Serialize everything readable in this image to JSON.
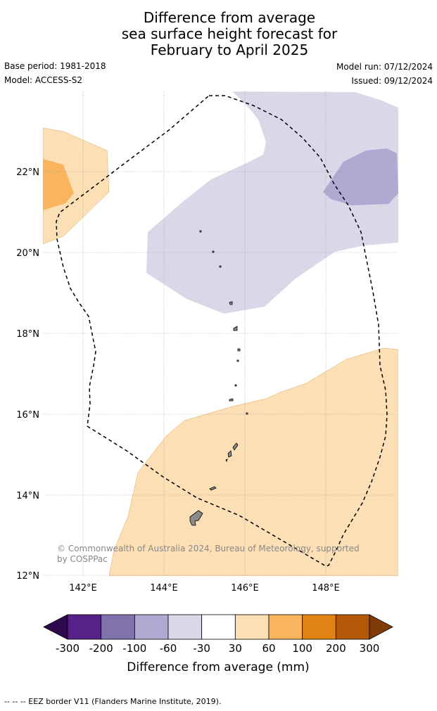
{
  "title": {
    "line1": "Difference from average",
    "line2": "sea surface height forecast for",
    "line3": "February to April 2025"
  },
  "meta": {
    "base_period": "Base period: 1981-2018",
    "model": "Model: ACCESS-S2",
    "model_run": "Model run: 07/12/2024",
    "issued": "Issued: 09/12/2024"
  },
  "map": {
    "latitude_labels": [
      "22°N",
      "20°N",
      "18°N",
      "16°N",
      "14°N",
      "12°N"
    ],
    "longitude_labels": [
      "142°E",
      "144°E",
      "146°E",
      "148°E"
    ],
    "copyright": "© Commonwealth of Australia 2024, Bureau of Meteorology, supported by COSPPac",
    "fill_colors": {
      "neg_30_60": "#d8d8e9",
      "neg_60_100": "#b1a9d1",
      "pos_30_60": "#fcdfb5",
      "pos_60_100": "#f8b55e"
    }
  },
  "colorbar": {
    "title": "Difference from average (mm)",
    "tick_labels": [
      "-300",
      "-200",
      "-100",
      "-60",
      "-30",
      "30",
      "60",
      "100",
      "200",
      "300"
    ],
    "colors": [
      "#2d0a4e",
      "#562188",
      "#8073ad",
      "#b1a9d1",
      "#d8d8e9",
      "#ffffff",
      "#fcdfb5",
      "#f8b55e",
      "#e08214",
      "#b35806",
      "#7f3b08"
    ]
  },
  "footer": {
    "legend_text": "--  --  -- EEZ border V11 (Flanders Marine Institute, 2019)."
  }
}
